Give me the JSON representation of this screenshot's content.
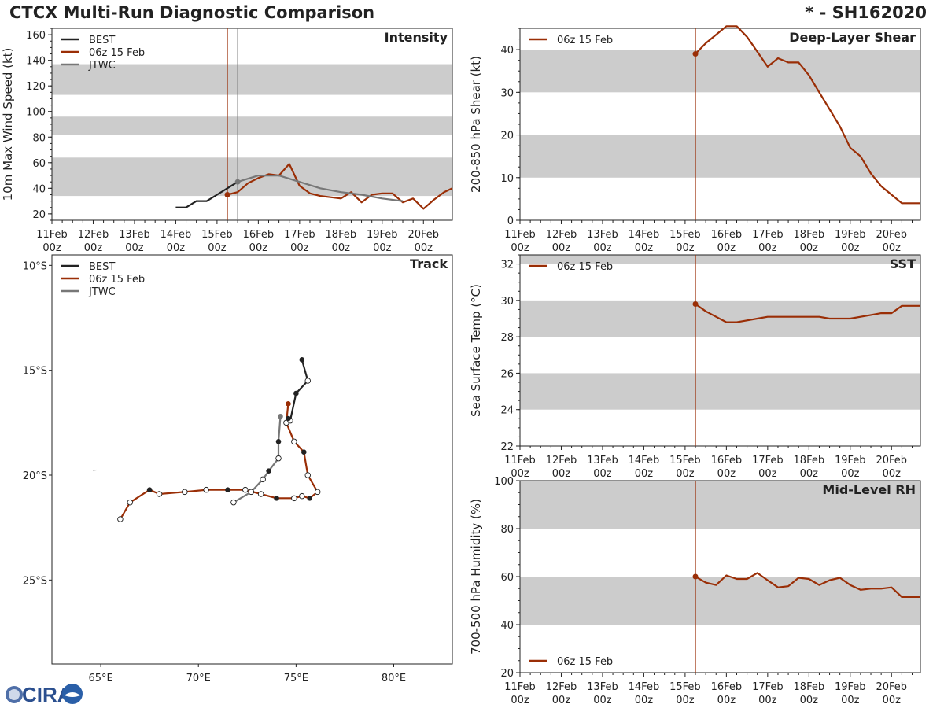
{
  "header": {
    "title": "CTCX Multi-Run Diagnostic Comparison",
    "storm": "* - SH162020"
  },
  "colors": {
    "best": "#222222",
    "run": "#9a2e06",
    "jtwc": "#777777",
    "band": "#cccccc",
    "axis": "#222222"
  },
  "time_axis": {
    "range_days": [
      0,
      9.7
    ],
    "ticks": [
      {
        "day": 0,
        "top": "11Feb",
        "bottom": "00z"
      },
      {
        "day": 1,
        "top": "12Feb",
        "bottom": "00z"
      },
      {
        "day": 2,
        "top": "13Feb",
        "bottom": "00z"
      },
      {
        "day": 3,
        "top": "14Feb",
        "bottom": "00z"
      },
      {
        "day": 4,
        "top": "15Feb",
        "bottom": "00z"
      },
      {
        "day": 5,
        "top": "16Feb",
        "bottom": "00z"
      },
      {
        "day": 6,
        "top": "17Feb",
        "bottom": "00z"
      },
      {
        "day": 7,
        "top": "18Feb",
        "bottom": "00z"
      },
      {
        "day": 8,
        "top": "19Feb",
        "bottom": "00z"
      },
      {
        "day": 9,
        "top": "20Feb",
        "bottom": "00z"
      }
    ]
  },
  "logo": {
    "text": "CIRA"
  },
  "chart_data": [
    {
      "id": "intensity",
      "type": "line",
      "title": "Intensity",
      "ylabel": "10m Max Wind Speed (kt)",
      "ylim": [
        15,
        165
      ],
      "yticks": [
        20,
        40,
        60,
        80,
        100,
        120,
        140,
        160
      ],
      "bands": [
        [
          34,
          64
        ],
        [
          82,
          96
        ],
        [
          113,
          137
        ]
      ],
      "vlines": [
        {
          "x": 4.25,
          "series": "run"
        },
        {
          "x": 4.5,
          "series": "jtwc"
        }
      ],
      "legend": [
        "BEST",
        "06z 15 Feb",
        "JTWC"
      ],
      "legend_placement": "top-left",
      "series": [
        {
          "name": "BEST",
          "key": "best",
          "x": [
            3.0,
            3.25,
            3.5,
            3.75,
            4.0,
            4.25,
            4.5
          ],
          "y": [
            25,
            25,
            30,
            30,
            35,
            40,
            45
          ]
        },
        {
          "name": "06z 15 Feb",
          "key": "run",
          "start_marker": true,
          "x": [
            4.25,
            4.5,
            4.75,
            5.0,
            5.25,
            5.5,
            5.75,
            6.0,
            6.25,
            6.5,
            6.75,
            7.0,
            7.25,
            7.5,
            7.75,
            8.0,
            8.25,
            8.5,
            8.75,
            9.0,
            9.25,
            9.5,
            9.7
          ],
          "y": [
            35,
            37,
            44,
            48,
            51,
            50,
            59,
            42,
            36,
            34,
            33,
            32,
            37,
            29,
            35,
            36,
            36,
            29,
            32,
            24,
            31,
            37,
            40
          ]
        },
        {
          "name": "JTWC",
          "key": "jtwc",
          "start_marker": true,
          "x": [
            4.5,
            5.0,
            5.5,
            6.0,
            6.5,
            7.0,
            7.5,
            8.0,
            8.5
          ],
          "y": [
            45,
            50,
            50,
            45,
            40,
            37,
            35,
            32,
            30
          ]
        }
      ]
    },
    {
      "id": "shear",
      "type": "line",
      "title": "Deep-Layer Shear",
      "ylabel": "200-850 hPa Shear (kt)",
      "ylim": [
        0,
        45
      ],
      "yticks": [
        0,
        10,
        20,
        30,
        40
      ],
      "bands": [
        [
          10,
          20
        ],
        [
          30,
          40
        ]
      ],
      "vlines": [
        {
          "x": 4.25,
          "series": "run"
        }
      ],
      "legend": [
        "06z 15 Feb"
      ],
      "legend_placement": "top-left",
      "series": [
        {
          "name": "06z 15 Feb",
          "key": "run",
          "start_marker": true,
          "x": [
            4.25,
            4.5,
            4.75,
            5.0,
            5.25,
            5.5,
            5.75,
            6.0,
            6.25,
            6.5,
            6.75,
            7.0,
            7.25,
            7.5,
            7.75,
            8.0,
            8.25,
            8.5,
            8.75,
            9.0,
            9.25,
            9.5,
            9.7
          ],
          "y": [
            39,
            41.5,
            43.5,
            45.5,
            45.5,
            43,
            39.5,
            36,
            38,
            37,
            37,
            34,
            30,
            26,
            22,
            17,
            15,
            11,
            8,
            6,
            4,
            4,
            4
          ]
        }
      ]
    },
    {
      "id": "sst",
      "type": "line",
      "title": "SST",
      "ylabel": "Sea Surface Temp (°C)",
      "ylim": [
        22,
        32.5
      ],
      "yticks": [
        22,
        24,
        26,
        28,
        30,
        32
      ],
      "bands": [
        [
          24,
          26
        ],
        [
          28,
          30
        ],
        [
          32,
          32.5
        ]
      ],
      "vlines": [
        {
          "x": 4.25,
          "series": "run"
        }
      ],
      "legend": [
        "06z 15 Feb"
      ],
      "legend_placement": "top-left",
      "series": [
        {
          "name": "06z 15 Feb",
          "key": "run",
          "start_marker": true,
          "x": [
            4.25,
            4.5,
            4.75,
            5.0,
            5.25,
            5.5,
            5.75,
            6.0,
            6.25,
            6.5,
            6.75,
            7.0,
            7.25,
            7.5,
            7.75,
            8.0,
            8.25,
            8.5,
            8.75,
            9.0,
            9.25,
            9.5,
            9.7
          ],
          "y": [
            29.8,
            29.4,
            29.1,
            28.8,
            28.8,
            28.9,
            29.0,
            29.1,
            29.1,
            29.1,
            29.1,
            29.1,
            29.1,
            29.0,
            29.0,
            29.0,
            29.1,
            29.2,
            29.3,
            29.3,
            29.7,
            29.7,
            29.7
          ]
        }
      ]
    },
    {
      "id": "rh",
      "type": "line",
      "title": "Mid-Level RH",
      "ylabel": "700-500 hPa Humidity (%)",
      "ylim": [
        20,
        100
      ],
      "yticks": [
        20,
        40,
        60,
        80,
        100
      ],
      "bands": [
        [
          40,
          60
        ],
        [
          80,
          100
        ]
      ],
      "vlines": [
        {
          "x": 4.25,
          "series": "run"
        }
      ],
      "legend": [
        "06z 15 Feb"
      ],
      "legend_placement": "bottom-left",
      "series": [
        {
          "name": "06z 15 Feb",
          "key": "run",
          "start_marker": true,
          "x": [
            4.25,
            4.5,
            4.75,
            5.0,
            5.25,
            5.5,
            5.75,
            6.0,
            6.25,
            6.5,
            6.75,
            7.0,
            7.25,
            7.5,
            7.75,
            8.0,
            8.25,
            8.5,
            8.75,
            9.0,
            9.25,
            9.5,
            9.7
          ],
          "y": [
            60,
            57.5,
            56.5,
            60.5,
            59,
            59,
            61.5,
            58.5,
            55.5,
            56,
            59.5,
            59,
            56.5,
            58.5,
            59.5,
            56.5,
            54.5,
            55,
            55,
            55.5,
            51.5,
            51.5,
            51.5
          ]
        }
      ]
    },
    {
      "id": "track",
      "type": "scatter",
      "title": "Track",
      "lon_range": [
        62.5,
        83
      ],
      "lat_range": [
        -29,
        -9.5
      ],
      "xticks": [
        {
          "value": 65,
          "label": "65°E"
        },
        {
          "value": 70,
          "label": "70°E"
        },
        {
          "value": 75,
          "label": "75°E"
        },
        {
          "value": 80,
          "label": "80°E"
        }
      ],
      "yticks": [
        {
          "value": -10,
          "label": "10°S"
        },
        {
          "value": -15,
          "label": "15°S"
        },
        {
          "value": -20,
          "label": "20°S"
        },
        {
          "value": -25,
          "label": "25°S"
        }
      ],
      "legend": [
        "BEST",
        "06z 15 Feb",
        "JTWC"
      ],
      "legend_placement": "top-left",
      "series": [
        {
          "name": "BEST",
          "key": "best",
          "lon": [
            75.3,
            75.6,
            75.0,
            74.7,
            74.6
          ],
          "lat": [
            -14.5,
            -15.5,
            -16.1,
            -17.4,
            -17.3
          ],
          "markers": [
            "filled",
            "none",
            "filled",
            "none",
            "filled"
          ]
        },
        {
          "name": "06z 15 Feb",
          "key": "run",
          "lon": [
            74.6,
            74.5,
            74.9,
            75.4,
            75.6,
            76.1,
            75.7,
            75.3,
            74.9,
            74.0,
            73.2,
            72.4,
            71.5,
            70.4,
            69.3,
            68.0,
            67.5,
            66.5,
            66.0
          ],
          "lat": [
            -16.6,
            -17.5,
            -18.4,
            -18.9,
            -20.0,
            -20.8,
            -21.1,
            -21.0,
            -21.1,
            -21.1,
            -20.9,
            -20.7,
            -20.7,
            -20.7,
            -20.8,
            -20.9,
            -20.7,
            -21.3,
            -22.1
          ],
          "markers": [
            "filled",
            "none",
            "none",
            "filled",
            "none",
            "none",
            "filled",
            "none",
            "none",
            "filled",
            "none",
            "none",
            "filled",
            "none",
            "none",
            "none",
            "filled",
            "none",
            "none"
          ]
        },
        {
          "name": "JTWC",
          "key": "jtwc",
          "lon": [
            74.2,
            74.1,
            74.1,
            73.6,
            73.3,
            72.7,
            71.8
          ],
          "lat": [
            -17.2,
            -18.4,
            -19.2,
            -19.8,
            -20.2,
            -20.8,
            -21.3
          ],
          "markers": [
            "filled",
            "filled",
            "none",
            "filled",
            "none",
            "none",
            "none"
          ]
        }
      ]
    }
  ]
}
